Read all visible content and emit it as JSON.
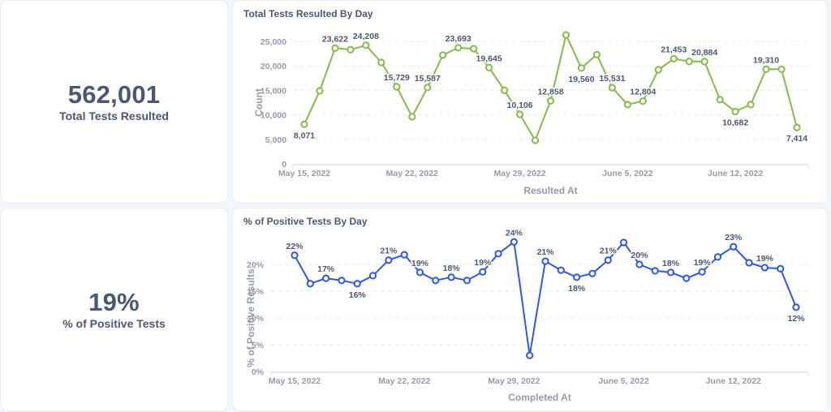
{
  "kpis": {
    "total": {
      "value": "562,001",
      "label": "Total Tests Resulted"
    },
    "positive": {
      "value": "19%",
      "label": "% of Positive Tests"
    }
  },
  "colors": {
    "series_total": "#84bb4c",
    "series_positive": "#2f58e0",
    "text": "#4c5773",
    "muted": "#949aab"
  },
  "chart_data": [
    {
      "type": "line",
      "title": "Total Tests Resulted By Day",
      "xlabel": "Resulted At",
      "ylabel": "Count",
      "ylim": [
        0,
        27500
      ],
      "yticks": [
        0,
        5000,
        10000,
        15000,
        20000,
        25000
      ],
      "ytick_labels": [
        "0",
        "5,000",
        "10,000",
        "15,000",
        "20,000",
        "25,000"
      ],
      "xtick_labels": [
        "May 15, 2022",
        "May 22, 2022",
        "May 29, 2022",
        "June 5, 2022",
        "June 12, 2022"
      ],
      "xtick_indices": [
        0,
        7,
        14,
        21,
        28
      ],
      "grid": true,
      "legend": "none",
      "x": [
        "2022-05-15",
        "2022-05-16",
        "2022-05-17",
        "2022-05-18",
        "2022-05-19",
        "2022-05-20",
        "2022-05-21",
        "2022-05-22",
        "2022-05-23",
        "2022-05-24",
        "2022-05-25",
        "2022-05-26",
        "2022-05-27",
        "2022-05-28",
        "2022-05-29",
        "2022-05-30",
        "2022-05-31",
        "2022-06-01",
        "2022-06-02",
        "2022-06-03",
        "2022-06-04",
        "2022-06-05",
        "2022-06-06",
        "2022-06-07",
        "2022-06-08",
        "2022-06-09",
        "2022-06-10",
        "2022-06-11",
        "2022-06-12",
        "2022-06-13",
        "2022-06-14",
        "2022-06-15",
        "2022-06-16"
      ],
      "series": [
        {
          "name": "Count",
          "values": [
            8071,
            14900,
            23622,
            23300,
            24208,
            20700,
            15729,
            9600,
            15587,
            22200,
            23693,
            23500,
            19645,
            15000,
            10106,
            4800,
            12858,
            26300,
            19560,
            22300,
            15531,
            12100,
            12804,
            19200,
            21453,
            20900,
            20884,
            13100,
            10682,
            12100,
            19310,
            19300,
            7414
          ],
          "labels": [
            {
              "i": 0,
              "text": "8,071",
              "pos": "below"
            },
            {
              "i": 2,
              "text": "23,622",
              "pos": "above"
            },
            {
              "i": 4,
              "text": "24,208",
              "pos": "above"
            },
            {
              "i": 6,
              "text": "15,729",
              "pos": "above"
            },
            {
              "i": 8,
              "text": "15,587",
              "pos": "above"
            },
            {
              "i": 10,
              "text": "23,693",
              "pos": "above"
            },
            {
              "i": 12,
              "text": "19,645",
              "pos": "above"
            },
            {
              "i": 14,
              "text": "10,106",
              "pos": "above"
            },
            {
              "i": 16,
              "text": "12,858",
              "pos": "above"
            },
            {
              "i": 18,
              "text": "19,560",
              "pos": "below"
            },
            {
              "i": 20,
              "text": "15,531",
              "pos": "above"
            },
            {
              "i": 22,
              "text": "12,804",
              "pos": "above"
            },
            {
              "i": 24,
              "text": "21,453",
              "pos": "above"
            },
            {
              "i": 26,
              "text": "20,884",
              "pos": "above"
            },
            {
              "i": 28,
              "text": "10,682",
              "pos": "below"
            },
            {
              "i": 30,
              "text": "19,310",
              "pos": "above"
            },
            {
              "i": 32,
              "text": "7,414",
              "pos": "below"
            }
          ]
        }
      ]
    },
    {
      "type": "line",
      "title": "% of Positive Tests By Day",
      "xlabel": "Completed At",
      "ylabel": "% of Positive Results",
      "ylim": [
        0,
        25
      ],
      "yticks": [
        0,
        5,
        10,
        15,
        20
      ],
      "ytick_labels": [
        "0%",
        "5%",
        "10%",
        "15%",
        "20%"
      ],
      "xtick_labels": [
        "May 15, 2022",
        "May 22, 2022",
        "May 29, 2022",
        "June 5, 2022",
        "June 12, 2022"
      ],
      "xtick_indices": [
        0,
        7,
        14,
        21,
        28
      ],
      "grid": true,
      "legend": "none",
      "x": [
        "2022-05-15",
        "2022-05-16",
        "2022-05-17",
        "2022-05-18",
        "2022-05-19",
        "2022-05-20",
        "2022-05-21",
        "2022-05-22",
        "2022-05-23",
        "2022-05-24",
        "2022-05-25",
        "2022-05-26",
        "2022-05-27",
        "2022-05-28",
        "2022-05-29",
        "2022-05-30",
        "2022-05-31",
        "2022-06-01",
        "2022-06-02",
        "2022-06-03",
        "2022-06-04",
        "2022-06-05",
        "2022-06-06",
        "2022-06-07",
        "2022-06-08",
        "2022-06-09",
        "2022-06-10",
        "2022-06-11",
        "2022-06-12",
        "2022-06-13",
        "2022-06-14",
        "2022-06-15",
        "2022-06-16"
      ],
      "series": [
        {
          "name": "% of Positive Results",
          "values": [
            21.7,
            16.4,
            17.4,
            17.0,
            16.4,
            17.9,
            20.8,
            21.8,
            18.5,
            17.0,
            17.6,
            17.0,
            18.6,
            22.0,
            24.2,
            3.0,
            20.6,
            18.9,
            17.6,
            18.3,
            20.8,
            24.1,
            20.0,
            18.8,
            18.5,
            17.4,
            18.6,
            21.4,
            23.3,
            20.3,
            19.4,
            19.2,
            12.0
          ],
          "labels": [
            {
              "i": 0,
              "text": "22%",
              "pos": "above"
            },
            {
              "i": 2,
              "text": "17%",
              "pos": "above"
            },
            {
              "i": 4,
              "text": "16%",
              "pos": "below"
            },
            {
              "i": 6,
              "text": "21%",
              "pos": "above"
            },
            {
              "i": 8,
              "text": "19%",
              "pos": "above"
            },
            {
              "i": 10,
              "text": "18%",
              "pos": "above"
            },
            {
              "i": 12,
              "text": "19%",
              "pos": "above"
            },
            {
              "i": 14,
              "text": "24%",
              "pos": "above"
            },
            {
              "i": 16,
              "text": "21%",
              "pos": "above"
            },
            {
              "i": 18,
              "text": "18%",
              "pos": "below"
            },
            {
              "i": 20,
              "text": "21%",
              "pos": "above"
            },
            {
              "i": 22,
              "text": "20%",
              "pos": "above"
            },
            {
              "i": 24,
              "text": "18%",
              "pos": "above"
            },
            {
              "i": 26,
              "text": "19%",
              "pos": "above"
            },
            {
              "i": 28,
              "text": "23%",
              "pos": "above"
            },
            {
              "i": 30,
              "text": "19%",
              "pos": "above"
            },
            {
              "i": 32,
              "text": "12%",
              "pos": "below"
            }
          ]
        }
      ]
    }
  ]
}
